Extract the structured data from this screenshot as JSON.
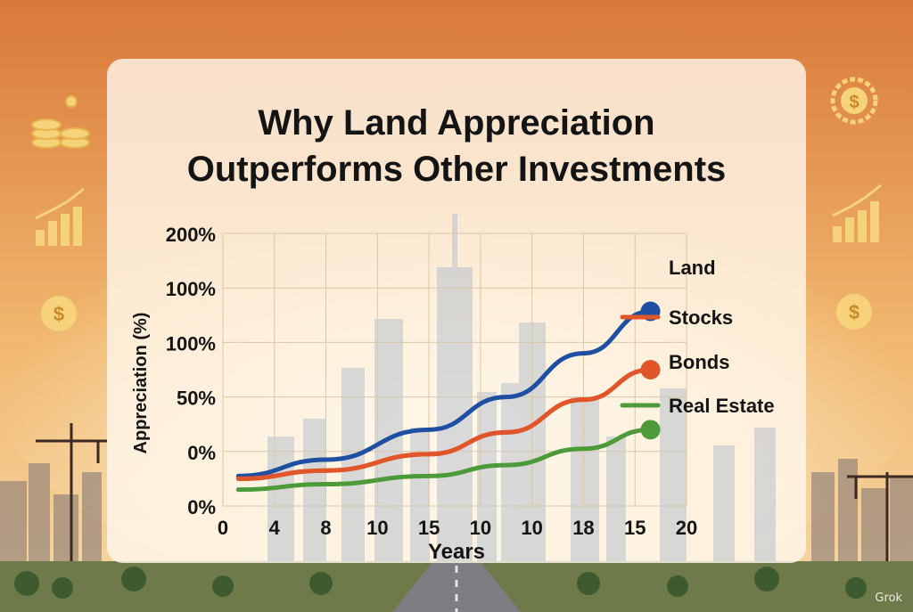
{
  "title_lines": [
    "Why Land Appreciation",
    "Outperforms Other Investments"
  ],
  "watermark": "Grok",
  "colors": {
    "land": "#1f4fa3",
    "stocks": "#e0562a",
    "bonds": "#e0562a",
    "real_estate": "#4c9a3a",
    "sky_top": "#e2853f",
    "sky_bottom": "#f6d6a0"
  },
  "decor_icons": [
    "coins-icon",
    "growth-chart-icon",
    "dollar-coin-icon",
    "dollar-gear-icon",
    "growth-chart-icon",
    "dollar-coin-icon",
    "construction-crane-icon",
    "city-skyline-icon",
    "highway-icon"
  ],
  "chart_data": {
    "type": "line",
    "ylabel": "Appreciation (%)",
    "xlabel": "Years",
    "x_tick_labels": [
      "0",
      "4",
      "8",
      "10",
      "15",
      "10",
      "10",
      "18",
      "15",
      "20"
    ],
    "y_tick_labels": [
      "0%",
      "0%",
      "50%",
      "100%",
      "100%",
      "200%"
    ],
    "x_index_range": [
      0,
      9
    ],
    "y_index_range": [
      0,
      5
    ],
    "grid": true,
    "legend_position": "right",
    "series": [
      {
        "name": "Land",
        "color": "#1f4fa3",
        "marker": "end-dot",
        "points": [
          [
            0.3,
            0.55
          ],
          [
            2,
            0.85
          ],
          [
            4,
            1.4
          ],
          [
            5.5,
            2.0
          ],
          [
            7,
            2.8
          ],
          [
            8.3,
            3.57
          ]
        ]
      },
      {
        "name": "Stocks",
        "color": "#e0562a",
        "marker": "none",
        "points": [
          [
            0.3,
            0.5
          ],
          [
            2,
            0.65
          ],
          [
            4,
            0.95
          ],
          [
            5.5,
            1.35
          ],
          [
            7,
            1.95
          ],
          [
            8.3,
            2.5
          ]
        ]
      },
      {
        "name": "Bonds",
        "color": "#e0562a",
        "marker": "end-dot",
        "points": [
          [
            0.3,
            0.5
          ],
          [
            2,
            0.65
          ],
          [
            4,
            0.95
          ],
          [
            5.5,
            1.35
          ],
          [
            7,
            1.95
          ],
          [
            8.3,
            2.5
          ]
        ]
      },
      {
        "name": "Real Estate",
        "color": "#4c9a3a",
        "marker": "end-dot",
        "points": [
          [
            0.3,
            0.3
          ],
          [
            2,
            0.4
          ],
          [
            4,
            0.55
          ],
          [
            5.5,
            0.75
          ],
          [
            7,
            1.05
          ],
          [
            8.3,
            1.4
          ]
        ]
      }
    ],
    "legend": [
      {
        "label": "Land",
        "swatch": "dot",
        "color": "#1f4fa3"
      },
      {
        "label": "Stocks",
        "swatch": "line",
        "color": "#e0562a"
      },
      {
        "label": "Bonds",
        "swatch": "none",
        "color": "#e0562a"
      },
      {
        "label": "Real Estate",
        "swatch": "line",
        "color": "#4c9a3a"
      }
    ]
  }
}
